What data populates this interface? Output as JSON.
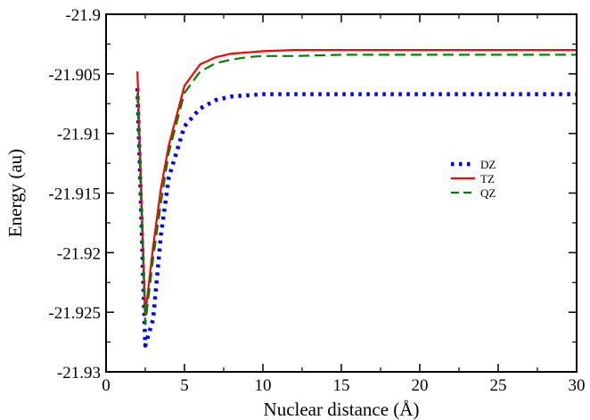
{
  "chart_data": {
    "type": "line",
    "title": "",
    "xlabel": "Nuclear distance (Å)",
    "ylabel": "Energy (au)",
    "xlim": [
      0,
      30
    ],
    "ylim": [
      -21.93,
      -21.9
    ],
    "xticks": [
      0,
      5,
      10,
      15,
      20,
      25,
      30
    ],
    "xtick_labels": [
      "0",
      "5",
      "10",
      "15",
      "20",
      "25",
      "30"
    ],
    "yticks": [
      -21.93,
      -21.925,
      -21.92,
      -21.915,
      -21.91,
      -21.905,
      -21.9
    ],
    "ytick_labels": [
      "-21.93",
      "-21.925",
      "-21.92",
      "-21.915",
      "-21.91",
      "-21.905",
      "-21.9"
    ],
    "grid": false,
    "legend_position": "right-center",
    "series": [
      {
        "name": "DZ",
        "color": "#0000ff",
        "style": "dotted",
        "x": [
          2.0,
          2.5,
          3.0,
          3.5,
          4.0,
          5.0,
          6.0,
          7.0,
          8.0,
          9.0,
          10.0,
          12.0,
          15.0,
          20.0,
          25.0,
          30.0
        ],
        "y": [
          -21.9062,
          -21.9278,
          -21.9256,
          -21.9185,
          -21.9137,
          -21.9094,
          -21.9079,
          -21.9072,
          -21.9069,
          -21.9068,
          -21.9067,
          -21.9067,
          -21.9067,
          -21.9067,
          -21.9067,
          -21.9067
        ]
      },
      {
        "name": "TZ",
        "color": "#ff0000",
        "style": "solid",
        "x": [
          2.0,
          2.5,
          3.0,
          3.5,
          4.0,
          5.0,
          6.0,
          7.0,
          8.0,
          9.0,
          10.0,
          12.0,
          15.0,
          20.0,
          25.0,
          30.0
        ],
        "y": [
          -21.9048,
          -21.9252,
          -21.9195,
          -21.9146,
          -21.911,
          -21.906,
          -21.9042,
          -21.9036,
          -21.9033,
          -21.9032,
          -21.9031,
          -21.903,
          -21.903,
          -21.903,
          -21.903,
          -21.903
        ]
      },
      {
        "name": "QZ",
        "color": "#008000",
        "style": "dashed",
        "x": [
          2.0,
          2.5,
          3.0,
          3.5,
          4.0,
          5.0,
          6.0,
          7.0,
          8.0,
          9.0,
          10.0,
          12.0,
          15.0,
          20.0,
          25.0,
          30.0
        ],
        "y": [
          -21.9066,
          -21.926,
          -21.9205,
          -21.9158,
          -21.9116,
          -21.9066,
          -21.9048,
          -21.9041,
          -21.9038,
          -21.9036,
          -21.9035,
          -21.9035,
          -21.9034,
          -21.9034,
          -21.9034,
          -21.9034
        ]
      }
    ]
  }
}
